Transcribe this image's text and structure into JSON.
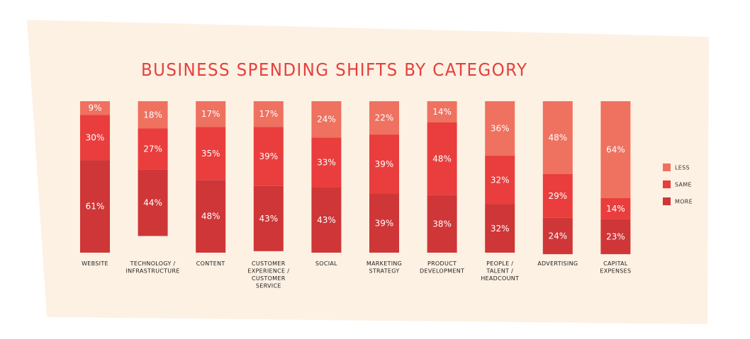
{
  "colors": {
    "background": "#fdf1e3",
    "title": "#e4413e",
    "less": "#ef7160",
    "same": "#e93e3d",
    "more": "#cf3637"
  },
  "chart_data": {
    "type": "bar",
    "stacked": true,
    "title": "BUSINESS SPENDING SHIFTS BY CATEGORY",
    "categories": [
      "WEBSITE",
      "TECHNOLOGY / INFRASTRUCTURE",
      "CONTENT",
      "CUSTOMER EXPERIENCE / CUSTOMER SERVICE",
      "SOCIAL",
      "MARKETING STRATEGY",
      "PRODUCT DEVELOPMENT",
      "PEOPLE / TALENT / HEADCOUNT",
      "ADVERTISING",
      "CAPITAL EXPENSES"
    ],
    "category_lines": [
      [
        "WEBSITE"
      ],
      [
        "TECHNOLOGY /",
        "INFRASTRUCTURE"
      ],
      [
        "CONTENT"
      ],
      [
        "CUSTOMER",
        "EXPERIENCE /",
        "CUSTOMER",
        "SERVICE"
      ],
      [
        "SOCIAL"
      ],
      [
        "MARKETING",
        "STRATEGY"
      ],
      [
        "PRODUCT",
        "DEVELOPMENT"
      ],
      [
        "PEOPLE /",
        "TALENT /",
        "HEADCOUNT"
      ],
      [
        "ADVERTISING"
      ],
      [
        "CAPITAL",
        "EXPENSES"
      ]
    ],
    "series": [
      {
        "name": "LESS",
        "values": [
          9,
          18,
          17,
          17,
          24,
          22,
          14,
          36,
          48,
          64
        ]
      },
      {
        "name": "SAME",
        "values": [
          30,
          27,
          35,
          39,
          33,
          39,
          48,
          32,
          29,
          14
        ]
      },
      {
        "name": "MORE",
        "values": [
          61,
          44,
          48,
          43,
          43,
          39,
          38,
          32,
          24,
          23
        ]
      }
    ],
    "value_suffix": "%",
    "ylim": [
      0,
      100
    ],
    "legend_position": "right",
    "grid": false
  }
}
